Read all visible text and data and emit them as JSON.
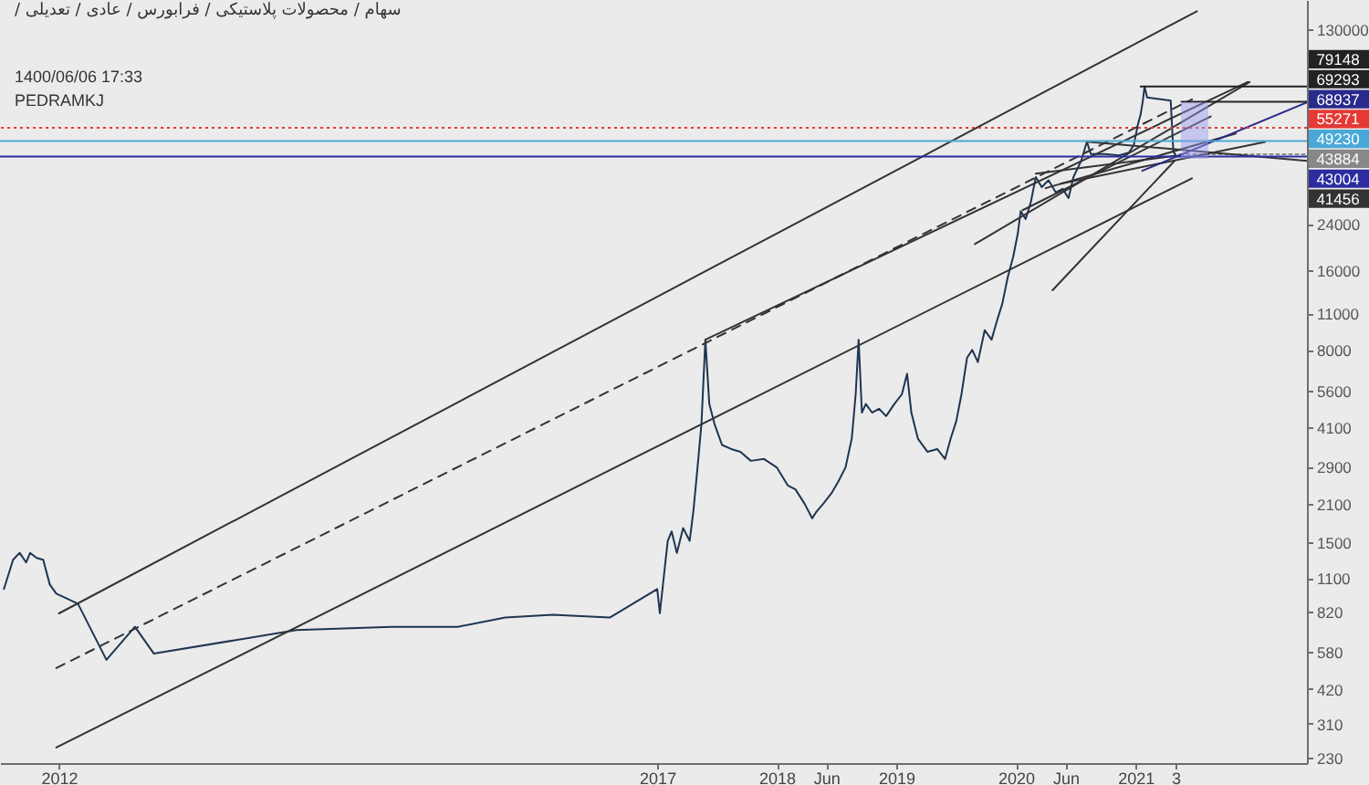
{
  "chart_data": {
    "type": "line",
    "title": "سهام / محصولات پلاستیکی / فرابورس / عادی / تعدیلی /",
    "log": "y",
    "xlim": [
      "2011-07-05",
      "2022-06-08"
    ],
    "xticks": [
      {
        "value": "2012",
        "label": "2012"
      },
      {
        "value": "2017",
        "label": "2017"
      },
      {
        "value": "2018",
        "label": "2018"
      },
      {
        "value": "2018-06",
        "label": "Jun"
      },
      {
        "value": "2019",
        "label": "2019"
      },
      {
        "value": "2020",
        "label": "2020"
      },
      {
        "value": "2020-06",
        "label": "Jun"
      },
      {
        "value": "2021",
        "label": "2021"
      },
      {
        "value": "2021-05-03",
        "label": "3"
      }
    ],
    "ylim": [
      220,
      168000
    ],
    "yticks": [
      230,
      310,
      420,
      580,
      820,
      1100,
      1500,
      2100,
      2900,
      4100,
      5600,
      8000,
      11000,
      16000,
      24000,
      130000
    ],
    "series": [
      {
        "color": "#1e3550",
        "x": [
          "2011-07-17",
          "2011-08-14",
          "2011-09-03",
          "2011-09-23",
          "2011-10-05",
          "2011-10-25",
          "2011-11-14",
          "2011-12-04",
          "2011-12-24",
          "2012-02-28",
          "2012-05-25",
          "2012-08-20",
          "2012-10-17",
          "2013-12-26",
          "2014-10-12",
          "2015-05-03",
          "2015-09-25",
          "2016-02-17",
          "2016-08-09",
          "2017-01-01",
          "2017-01-09",
          "2017-01-21",
          "2017-02-02",
          "2017-02-14",
          "2017-03-02",
          "2017-03-21",
          "2017-04-10",
          "2017-04-22",
          "2017-05-04",
          "2017-05-16",
          "2017-05-28",
          "2017-06-09",
          "2017-06-25",
          "2017-07-18",
          "2017-08-15",
          "2017-09-12",
          "2017-10-14",
          "2017-11-23",
          "2018-01-01",
          "2018-01-15",
          "2018-02-04",
          "2018-02-27",
          "2018-03-27",
          "2018-04-19",
          "2018-05-01",
          "2018-05-23",
          "2018-06-17",
          "2018-07-08",
          "2018-07-30",
          "2018-08-18",
          "2018-08-30",
          "2018-09-08",
          "2018-09-18",
          "2018-09-30",
          "2018-10-19",
          "2018-11-09",
          "2018-12-01",
          "2018-12-26",
          "2019-01-18",
          "2019-02-03",
          "2019-02-16",
          "2019-03-08",
          "2019-04-06",
          "2019-05-06",
          "2019-05-30",
          "2019-06-16",
          "2019-07-03",
          "2019-07-19",
          "2019-08-05",
          "2019-08-21",
          "2019-09-07",
          "2019-09-28",
          "2019-10-19",
          "2019-11-04",
          "2019-11-21",
          "2019-12-07",
          "2019-12-24",
          "2020-01-07",
          "2020-01-16",
          "2020-01-31",
          "2020-02-16",
          "2020-03-02",
          "2020-03-20",
          "2020-04-10",
          "2020-05-02",
          "2020-05-23",
          "2020-06-10",
          "2020-06-25",
          "2020-07-19",
          "2020-08-05",
          "2020-08-17",
          "2020-09-28",
          "2020-11-11",
          "2020-12-11",
          "2020-12-26",
          "2021-01-08",
          "2021-01-16",
          "2021-01-23",
          "2021-01-28",
          "2021-02-05",
          "2021-03-12",
          "2021-04-18",
          "2021-04-26",
          "2021-05-06",
          "2021-05-18"
        ],
        "values": [
          1000,
          1290,
          1370,
          1260,
          1370,
          1310,
          1290,
          1040,
          960,
          880,
          540,
          720,
          570,
          700,
          720,
          720,
          780,
          800,
          780,
          1000,
          810,
          1110,
          1520,
          1650,
          1370,
          1700,
          1520,
          2000,
          2880,
          4200,
          8750,
          5000,
          4200,
          3500,
          3380,
          3300,
          3050,
          3100,
          2880,
          2700,
          2460,
          2380,
          2100,
          1850,
          1950,
          2100,
          2300,
          2550,
          2880,
          3700,
          5440,
          8750,
          4640,
          5000,
          4640,
          4800,
          4500,
          5000,
          5440,
          6500,
          4640,
          3700,
          3300,
          3380,
          3100,
          3700,
          4300,
          5440,
          7470,
          8000,
          7200,
          9500,
          8750,
          10260,
          12000,
          15000,
          18000,
          22000,
          26800,
          25000,
          29000,
          36000,
          33000,
          35000,
          31500,
          32500,
          30000,
          36000,
          41600,
          49000,
          44000,
          44000,
          43500,
          44500,
          47500,
          57000,
          62000,
          70000,
          79148,
          72000,
          71000,
          70000,
          45000,
          43000,
          43884
        ]
      },
      {
        "color": "#888888",
        "line_style": "dotted",
        "x": [
          "2021-05-18",
          "2022-06-08"
        ],
        "values": [
          43884,
          43884
        ],
        "value_labels": [
          null,
          "43884"
        ]
      },
      {
        "color": "#333333",
        "x": [
          "2012",
          "2021-07-07"
        ],
        "values": [
          809,
          152400
        ]
      },
      {
        "color": "#333333",
        "line_style": "dashed",
        "x": [
          "2011-12-24",
          "2021-06-22"
        ],
        "values": [
          503,
          70800
        ]
      },
      {
        "color": "#333333",
        "x": [
          "2011-12-24",
          "2021-06-22"
        ],
        "values": [
          252,
          35600
        ]
      },
      {
        "color": "#333333",
        "x": [
          "2017-05-28",
          "2021-12-09"
        ],
        "values": [
          8750,
          82300
        ]
      },
      {
        "color": "#333333",
        "x": [
          "2019-08-29",
          "2021-12-15"
        ],
        "values": [
          20100,
          82300
        ]
      },
      {
        "color": "#333333",
        "x": [
          "2020-03-02",
          "2021-05-01"
        ],
        "values": [
          37100,
          43300
        ]
      },
      {
        "color": "#333333",
        "x": [
          "2020-01-22",
          "2021-08-18"
        ],
        "values": [
          27000,
          61000
        ]
      },
      {
        "color": "#333333",
        "x": [
          "2020-08-05",
          "2022-06-08"
        ],
        "values": [
          49000,
          41456
        ],
        "value_labels": [
          null,
          "41456"
        ]
      },
      {
        "color": "#333333",
        "x": [
          "2020-04-22",
          "2021-05-01"
        ],
        "values": [
          13450,
          41600
        ]
      },
      {
        "color": "#333333",
        "x": [
          "2020-04-01",
          "2021-11-03"
        ],
        "values": [
          32700,
          52600
        ]
      },
      {
        "color": "#333333",
        "x": [
          "2020-05-17",
          "2022-01-31"
        ],
        "values": [
          34000,
          48900
        ]
      },
      {
        "color": "#2a2a8c",
        "x": [
          "2021-01-21",
          "2022-06-08"
        ],
        "values": [
          38000,
          68937
        ],
        "value_labels": [
          null,
          "68937"
        ]
      },
      {
        "color": "#222222",
        "x": [
          "2021-01-16",
          "2022-06-08"
        ],
        "values": [
          79148,
          79148
        ],
        "value_labels": [
          null,
          "79148"
        ]
      },
      {
        "color": "#222222",
        "x": [
          "2021-05-21",
          "2022-06-08"
        ],
        "values": [
          69293,
          69293
        ],
        "value_labels": [
          null,
          "69293"
        ]
      }
    ],
    "ref_lines": [
      {
        "axis": "y",
        "value": 55271,
        "label": "55271",
        "color": "#e53935",
        "line_style": "dotted"
      },
      {
        "axis": "y",
        "value": 49230,
        "label": "49230",
        "color": "#4aa8d8"
      },
      {
        "axis": "y",
        "value": 43004,
        "label": "43004",
        "color": "#2c2ca0"
      }
    ],
    "annotations": [
      "1400/06/06 17:33",
      "PEDRAMKJ"
    ]
  }
}
